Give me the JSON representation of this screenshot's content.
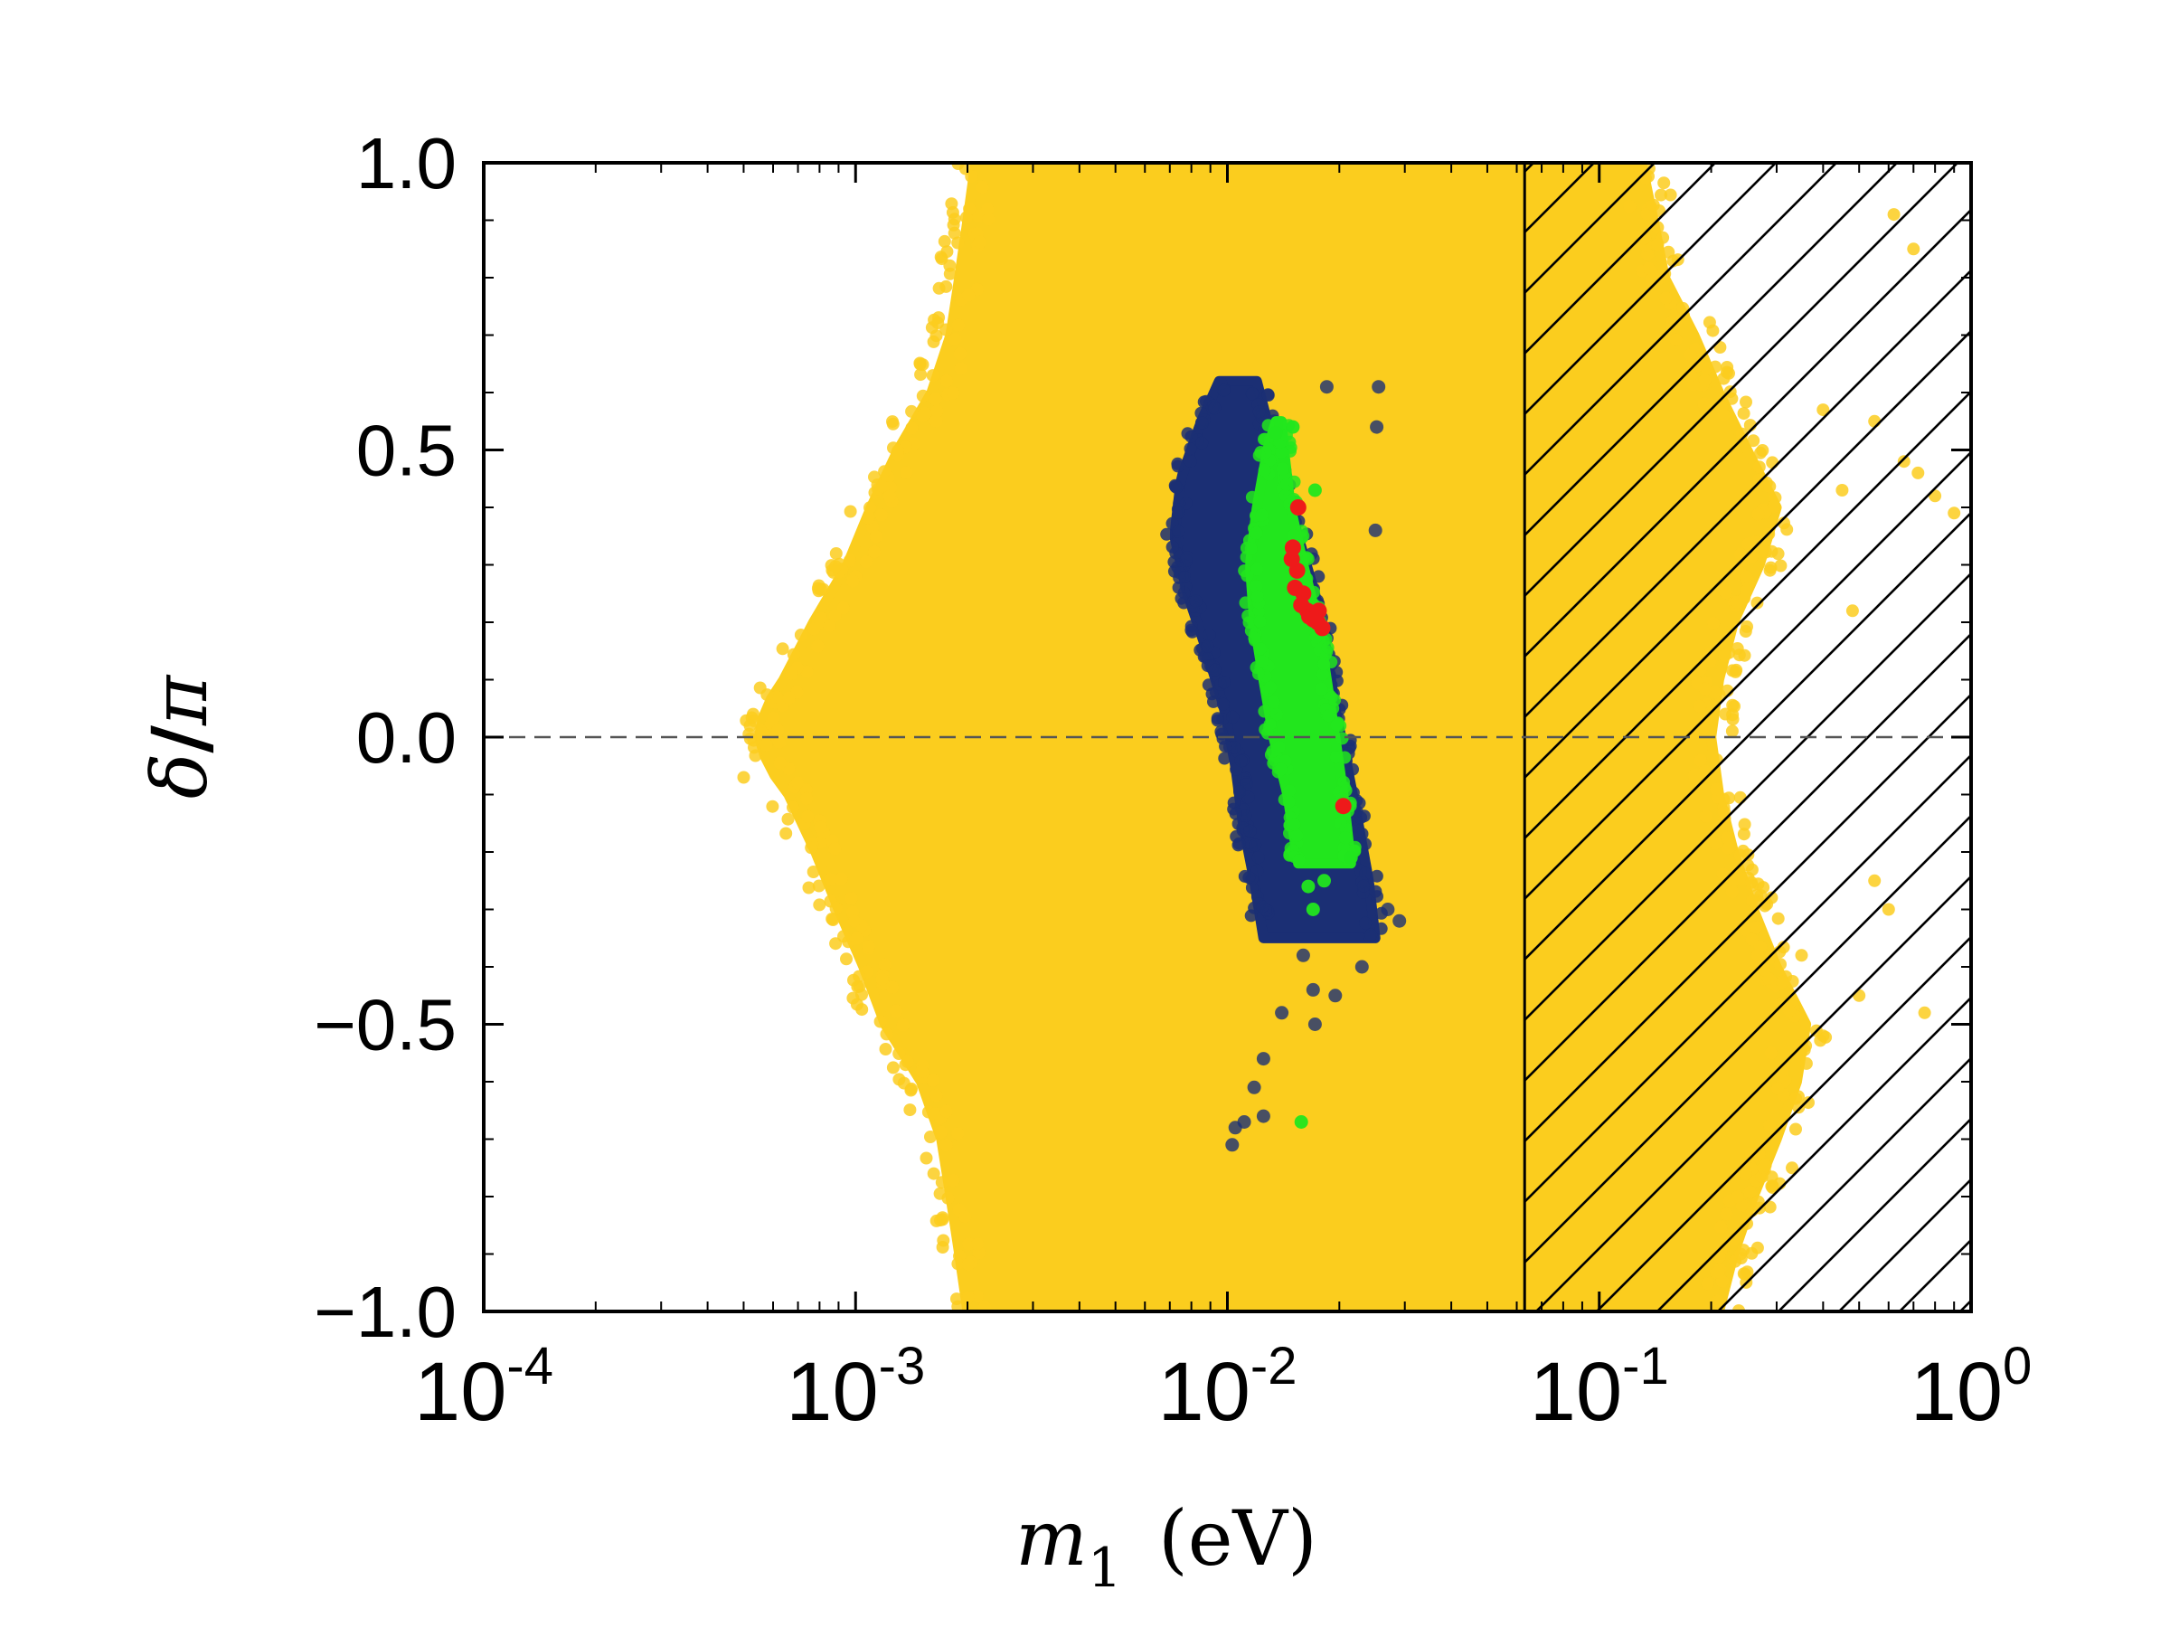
{
  "chart_data": {
    "type": "scatter",
    "title": "",
    "xlabel": "m_1 (eV)",
    "xlabel_parts": {
      "symbol": "m",
      "subscript": "1",
      "unit": "(eV)"
    },
    "ylabel": "δ/π",
    "ylabel_parts": {
      "num": "δ",
      "sep": "/",
      "den": "π"
    },
    "x_scale": "log",
    "xlim": [
      0.0001,
      1
    ],
    "ylim": [
      -1.0,
      1.0
    ],
    "x_ticks": [
      {
        "value": 0.0001,
        "base": "10",
        "exp": "-4"
      },
      {
        "value": 0.001,
        "base": "10",
        "exp": "-3"
      },
      {
        "value": 0.01,
        "base": "10",
        "exp": "-2"
      },
      {
        "value": 0.1,
        "base": "10",
        "exp": "-1"
      },
      {
        "value": 1,
        "base": "10",
        "exp": "0"
      }
    ],
    "y_ticks": [
      {
        "value": 1.0,
        "label": "1.0"
      },
      {
        "value": 0.5,
        "label": "0.5"
      },
      {
        "value": 0.0,
        "label": "0.0"
      },
      {
        "value": -0.5,
        "label": "−0.5"
      },
      {
        "value": -1.0,
        "label": "−1.0"
      }
    ],
    "reference_line": {
      "y": 0.0,
      "style": "dashed",
      "color": "#555555"
    },
    "excluded_region": {
      "x_min": 0.063,
      "x_max": 1,
      "pattern": "hatched"
    },
    "series": [
      {
        "name": "all points",
        "color": "#fbcd1e",
        "region": {
          "left_edge": [
            [
              -1.0,
              0.002
            ],
            [
              -0.9,
              0.0019
            ],
            [
              -0.8,
              0.0018
            ],
            [
              -0.7,
              0.0017
            ],
            [
              -0.6,
              0.0015
            ],
            [
              -0.5,
              0.0012
            ],
            [
              -0.4,
              0.00105
            ],
            [
              -0.3,
              0.0009
            ],
            [
              -0.2,
              0.00078
            ],
            [
              -0.1,
              0.00066
            ],
            [
              -0.05,
              0.00058
            ],
            [
              0.0,
              0.00055
            ],
            [
              0.05,
              0.00057
            ],
            [
              0.1,
              0.00064
            ],
            [
              0.2,
              0.00077
            ],
            [
              0.3,
              0.00095
            ],
            [
              0.4,
              0.0011
            ],
            [
              0.5,
              0.0013
            ],
            [
              0.6,
              0.0016
            ],
            [
              0.7,
              0.0018
            ],
            [
              0.8,
              0.0019
            ],
            [
              0.9,
              0.002
            ],
            [
              1.0,
              0.0021
            ]
          ],
          "right_edge": [
            [
              -1.0,
              0.21
            ],
            [
              -0.9,
              0.23
            ],
            [
              -0.8,
              0.26
            ],
            [
              -0.7,
              0.3
            ],
            [
              -0.6,
              0.34
            ],
            [
              -0.5,
              0.36
            ],
            [
              -0.4,
              0.3
            ],
            [
              -0.3,
              0.26
            ],
            [
              -0.2,
              0.23
            ],
            [
              -0.1,
              0.21
            ],
            [
              0.0,
              0.2
            ],
            [
              0.1,
              0.21
            ],
            [
              0.2,
              0.23
            ],
            [
              0.3,
              0.27
            ],
            [
              0.4,
              0.3
            ],
            [
              0.5,
              0.25
            ],
            [
              0.6,
              0.21
            ],
            [
              0.7,
              0.18
            ],
            [
              0.8,
              0.15
            ],
            [
              0.9,
              0.14
            ],
            [
              1.0,
              0.13
            ]
          ]
        },
        "outliers": [
          [
            0.7,
            0.85
          ],
          [
            0.62,
            0.91
          ],
          [
            0.48,
            0.22
          ],
          [
            0.55,
            0.55
          ],
          [
            0.8,
            0.42
          ],
          [
            0.9,
            0.39
          ],
          [
            0.72,
            0.46
          ],
          [
            0.66,
            0.48
          ],
          [
            0.4,
            0.57
          ],
          [
            0.45,
            0.43
          ],
          [
            0.55,
            -0.25
          ],
          [
            0.6,
            -0.3
          ],
          [
            0.75,
            -0.48
          ],
          [
            0.5,
            -0.45
          ],
          [
            0.35,
            -0.38
          ],
          [
            0.4,
            -0.52
          ],
          [
            0.29,
            -0.55
          ],
          [
            0.33,
            -0.75
          ],
          [
            0.27,
            -0.82
          ],
          [
            0.24,
            -0.9
          ],
          [
            0.0005,
            -0.07
          ],
          [
            0.00052,
            0.02
          ]
        ]
      },
      {
        "name": "blue",
        "color": "#1b2f74",
        "region": {
          "left_edge": [
            [
              -0.35,
              0.0125
            ],
            [
              -0.25,
              0.0118
            ],
            [
              -0.15,
              0.011
            ],
            [
              -0.05,
              0.0105
            ],
            [
              0.05,
              0.0098
            ],
            [
              0.15,
              0.0088
            ],
            [
              0.25,
              0.0078
            ],
            [
              0.35,
              0.0072
            ],
            [
              0.45,
              0.0075
            ],
            [
              0.55,
              0.0085
            ],
            [
              0.62,
              0.0095
            ]
          ],
          "right_edge": [
            [
              -0.35,
              0.025
            ],
            [
              -0.25,
              0.024
            ],
            [
              -0.15,
              0.0225
            ],
            [
              -0.05,
              0.021
            ],
            [
              0.05,
              0.0195
            ],
            [
              0.15,
              0.0185
            ],
            [
              0.25,
              0.0172
            ],
            [
              0.35,
              0.0155
            ],
            [
              0.45,
              0.014
            ],
            [
              0.55,
              0.0128
            ],
            [
              0.62,
              0.012
            ]
          ]
        },
        "outliers": [
          [
            0.0185,
            0.61
          ],
          [
            0.0255,
            0.61
          ],
          [
            0.0252,
            0.54
          ],
          [
            0.025,
            0.36
          ],
          [
            0.014,
            -0.48
          ],
          [
            0.0125,
            -0.56
          ],
          [
            0.0118,
            -0.61
          ],
          [
            0.0125,
            -0.66
          ],
          [
            0.0105,
            -0.68
          ],
          [
            0.0103,
            -0.71
          ],
          [
            0.0111,
            -0.67
          ],
          [
            0.017,
            -0.44
          ],
          [
            0.0195,
            -0.45
          ],
          [
            0.0172,
            -0.5
          ],
          [
            0.023,
            -0.4
          ],
          [
            0.016,
            -0.38
          ],
          [
            0.029,
            -0.32
          ],
          [
            0.027,
            -0.3
          ]
        ]
      },
      {
        "name": "green",
        "color": "#22e61d",
        "region": {
          "left_edge": [
            [
              -0.22,
              0.0155
            ],
            [
              -0.1,
              0.0145
            ],
            [
              0.0,
              0.0133
            ],
            [
              0.1,
              0.0125
            ],
            [
              0.2,
              0.0118
            ],
            [
              0.3,
              0.0115
            ],
            [
              0.4,
              0.012
            ],
            [
              0.5,
              0.0128
            ],
            [
              0.55,
              0.0135
            ]
          ],
          "right_edge": [
            [
              -0.22,
              0.0215
            ],
            [
              -0.1,
              0.0205
            ],
            [
              0.0,
              0.0195
            ],
            [
              0.1,
              0.0185
            ],
            [
              0.2,
              0.0175
            ],
            [
              0.3,
              0.016
            ],
            [
              0.4,
              0.0148
            ],
            [
              0.5,
              0.0142
            ],
            [
              0.55,
              0.014
            ]
          ]
        },
        "outliers": [
          [
            0.015,
            0.54
          ],
          [
            0.0135,
            0.53
          ],
          [
            0.0172,
            0.43
          ],
          [
            0.0182,
            -0.25
          ],
          [
            0.0215,
            -0.21
          ],
          [
            0.0165,
            -0.26
          ],
          [
            0.017,
            -0.3
          ],
          [
            0.0158,
            -0.67
          ]
        ]
      },
      {
        "name": "red",
        "color": "#ee1a1a",
        "points": [
          [
            0.0155,
            0.4
          ],
          [
            0.015,
            0.33
          ],
          [
            0.0149,
            0.31
          ],
          [
            0.0154,
            0.29
          ],
          [
            0.0152,
            0.26
          ],
          [
            0.016,
            0.25
          ],
          [
            0.0158,
            0.23
          ],
          [
            0.0164,
            0.22
          ],
          [
            0.0166,
            0.21
          ],
          [
            0.017,
            0.205
          ],
          [
            0.0175,
            0.2
          ],
          [
            0.018,
            0.19
          ],
          [
            0.0176,
            0.22
          ],
          [
            0.0205,
            -0.12
          ]
        ]
      }
    ]
  }
}
